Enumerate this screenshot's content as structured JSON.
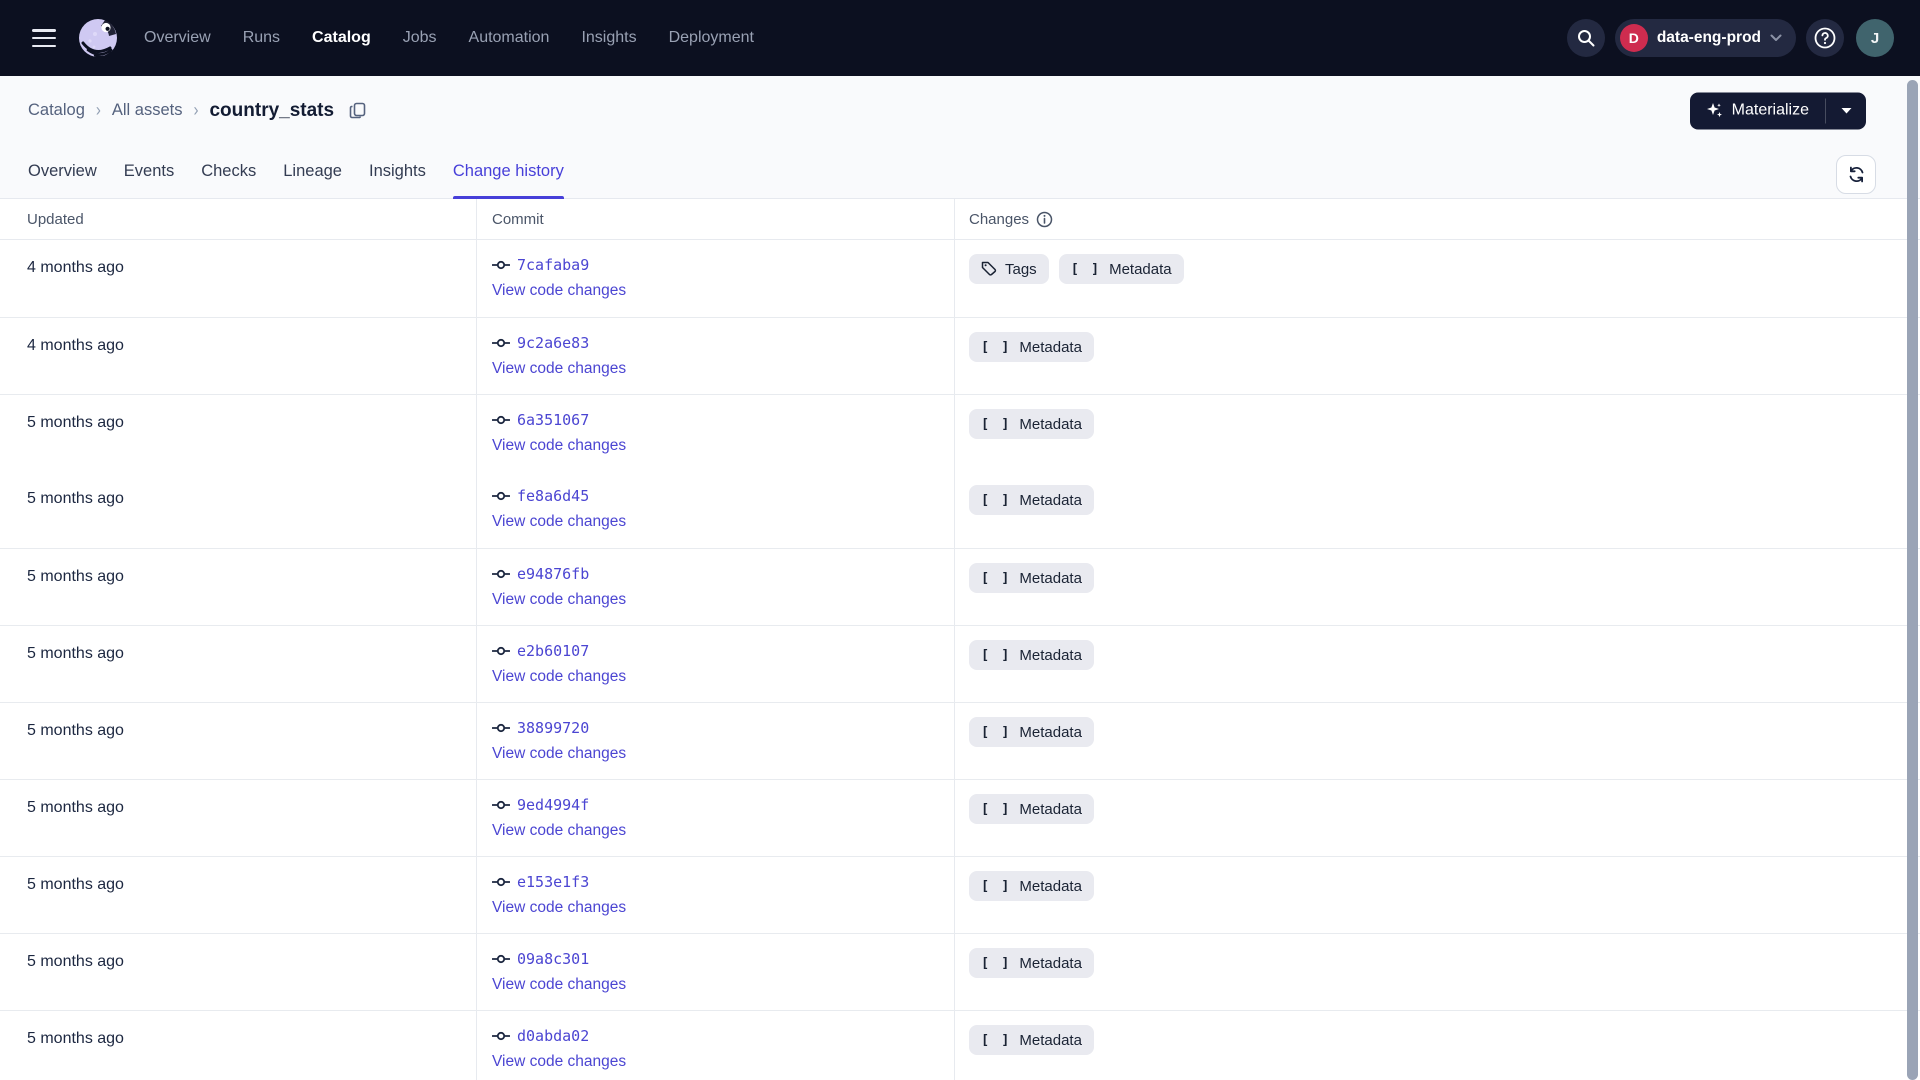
{
  "topbar": {
    "nav": [
      {
        "label": "Overview",
        "active": false
      },
      {
        "label": "Runs",
        "active": false
      },
      {
        "label": "Catalog",
        "active": true
      },
      {
        "label": "Jobs",
        "active": false
      },
      {
        "label": "Automation",
        "active": false
      },
      {
        "label": "Insights",
        "active": false
      },
      {
        "label": "Deployment",
        "active": false
      }
    ],
    "deployment": {
      "initial": "D",
      "name": "data-eng-prod"
    },
    "avatar_initial": "J"
  },
  "breadcrumb": {
    "links": [
      "Catalog",
      "All assets"
    ],
    "current": "country_stats"
  },
  "actions": {
    "materialize_label": "Materialize"
  },
  "tabs": [
    {
      "label": "Overview",
      "active": false
    },
    {
      "label": "Events",
      "active": false
    },
    {
      "label": "Checks",
      "active": false
    },
    {
      "label": "Lineage",
      "active": false
    },
    {
      "label": "Insights",
      "active": false
    },
    {
      "label": "Change history",
      "active": true
    }
  ],
  "table": {
    "columns": [
      "Updated",
      "Commit",
      "Changes"
    ],
    "link_label": "View code changes",
    "rows": [
      {
        "updated": "4 months ago",
        "commit": "7cafaba9",
        "changes": [
          {
            "label": "Tags",
            "icon": "tag"
          },
          {
            "label": "Metadata",
            "icon": "brackets"
          }
        ],
        "divider": true
      },
      {
        "updated": "4 months ago",
        "commit": "9c2a6e83",
        "changes": [
          {
            "label": "Metadata",
            "icon": "brackets"
          }
        ],
        "divider": true
      },
      {
        "updated": "5 months ago",
        "commit": "6a351067",
        "changes": [
          {
            "label": "Metadata",
            "icon": "brackets"
          }
        ],
        "divider": true
      },
      {
        "updated": "5 months ago",
        "commit": "fe8a6d45",
        "changes": [
          {
            "label": "Metadata",
            "icon": "brackets"
          }
        ],
        "divider": false
      },
      {
        "updated": "5 months ago",
        "commit": "e94876fb",
        "changes": [
          {
            "label": "Metadata",
            "icon": "brackets"
          }
        ],
        "divider": true
      },
      {
        "updated": "5 months ago",
        "commit": "e2b60107",
        "changes": [
          {
            "label": "Metadata",
            "icon": "brackets"
          }
        ],
        "divider": true
      },
      {
        "updated": "5 months ago",
        "commit": "38899720",
        "changes": [
          {
            "label": "Metadata",
            "icon": "brackets"
          }
        ],
        "divider": true
      },
      {
        "updated": "5 months ago",
        "commit": "9ed4994f",
        "changes": [
          {
            "label": "Metadata",
            "icon": "brackets"
          }
        ],
        "divider": true
      },
      {
        "updated": "5 months ago",
        "commit": "e153e1f3",
        "changes": [
          {
            "label": "Metadata",
            "icon": "brackets"
          }
        ],
        "divider": true
      },
      {
        "updated": "5 months ago",
        "commit": "09a8c301",
        "changes": [
          {
            "label": "Metadata",
            "icon": "brackets"
          }
        ],
        "divider": true
      },
      {
        "updated": "5 months ago",
        "commit": "d0abda02",
        "changes": [
          {
            "label": "Metadata",
            "icon": "brackets"
          }
        ],
        "divider": true
      }
    ]
  },
  "colors": {
    "topbar_bg": "#0C1020",
    "accent_indigo": "#473FD9",
    "link_indigo": "#4B45D2",
    "deployment_badge": "#CE2C4F",
    "avatar_bg": "#40646D",
    "badge_bg": "#E9EAF0",
    "band_bg": "#F9FAFC"
  }
}
